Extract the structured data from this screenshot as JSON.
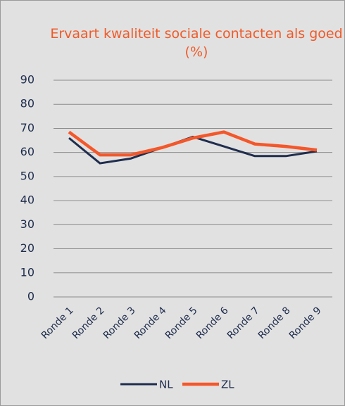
{
  "chart_data": {
    "type": "line",
    "title": "Ervaart kwaliteit sociale contacten als goed (%)",
    "categories": [
      "Ronde 1",
      "Ronde 2",
      "Ronde 3",
      "Ronde 4",
      "Ronde 5",
      "Ronde 6",
      "Ronde 7",
      "Ronde 8",
      "Ronde 9"
    ],
    "series": [
      {
        "name": "NL",
        "color": "#1f2d4e",
        "values": [
          66,
          55.5,
          57.5,
          62,
          66.5,
          62.5,
          58.5,
          58.5,
          60.5
        ]
      },
      {
        "name": "ZL",
        "color": "#f4572a",
        "values": [
          68.5,
          59,
          59,
          62,
          66,
          68.5,
          63.5,
          62.5,
          61
        ]
      }
    ],
    "ylim": [
      0,
      90
    ],
    "yticks": [
      0,
      10,
      20,
      30,
      40,
      50,
      60,
      70,
      80,
      90
    ],
    "grid": true,
    "legend": "bottom"
  }
}
